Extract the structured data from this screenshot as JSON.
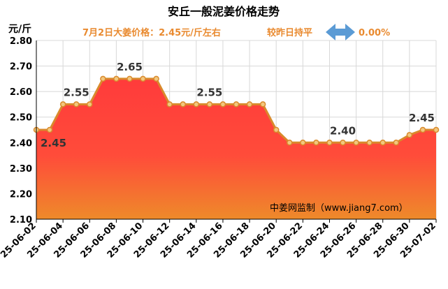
{
  "chart_data": {
    "type": "area",
    "title": "安丘一般泥姜价格走势",
    "ylabel": "元/斤",
    "info": {
      "price_text": "7月2日大姜价格：2.45元/斤左右",
      "change_text": "较昨日持平",
      "percent_text": "0.00%"
    },
    "watermark": "中姜网监制（www.jiang7.com）",
    "ylim": [
      2.1,
      2.8
    ],
    "y_ticks": [
      "2.10",
      "2.20",
      "2.30",
      "2.40",
      "2.50",
      "2.60",
      "2.70",
      "2.80"
    ],
    "x_tick_labels": [
      "25-06-02",
      "25-06-04",
      "25-06-06",
      "25-06-08",
      "25-06-10",
      "25-06-12",
      "25-06-14",
      "25-06-16",
      "25-06-18",
      "25-06-20",
      "25-06-22",
      "25-06-24",
      "25-06-26",
      "25-06-28",
      "25-06-30",
      "25-07-02"
    ],
    "x": [
      "25-06-02",
      "25-06-03",
      "25-06-04",
      "25-06-05",
      "25-06-06",
      "25-06-07",
      "25-06-08",
      "25-06-09",
      "25-06-10",
      "25-06-11",
      "25-06-12",
      "25-06-13",
      "25-06-14",
      "25-06-15",
      "25-06-16",
      "25-06-17",
      "25-06-18",
      "25-06-19",
      "25-06-20",
      "25-06-21",
      "25-06-22",
      "25-06-23",
      "25-06-24",
      "25-06-25",
      "25-06-26",
      "25-06-27",
      "25-06-28",
      "25-06-29",
      "25-06-30",
      "25-07-01",
      "25-07-02"
    ],
    "values": [
      2.45,
      2.45,
      2.55,
      2.55,
      2.55,
      2.65,
      2.65,
      2.65,
      2.65,
      2.65,
      2.55,
      2.55,
      2.55,
      2.55,
      2.55,
      2.55,
      2.55,
      2.55,
      2.45,
      2.4,
      2.4,
      2.4,
      2.4,
      2.4,
      2.4,
      2.4,
      2.4,
      2.4,
      2.43,
      2.45,
      2.45
    ],
    "annotations": [
      {
        "date": "25-06-02",
        "text": "2.45"
      },
      {
        "date": "25-06-05",
        "text": "2.55"
      },
      {
        "date": "25-06-09",
        "text": "2.65"
      },
      {
        "date": "25-06-15",
        "text": "2.55"
      },
      {
        "date": "25-06-25",
        "text": "2.40"
      },
      {
        "date": "25-07-02",
        "text": "2.45"
      }
    ],
    "grid": true,
    "colors": {
      "title": "#000000",
      "info_text": "#e98a2f",
      "line": "#d98a2c",
      "marker_fill": "#f2c77e",
      "fill_top": "#ff3b3b",
      "fill_bottom": "#ee8a2a",
      "arrow": "#5b9bd5",
      "grid": "#d8d8d8",
      "axis": "#000000"
    }
  }
}
